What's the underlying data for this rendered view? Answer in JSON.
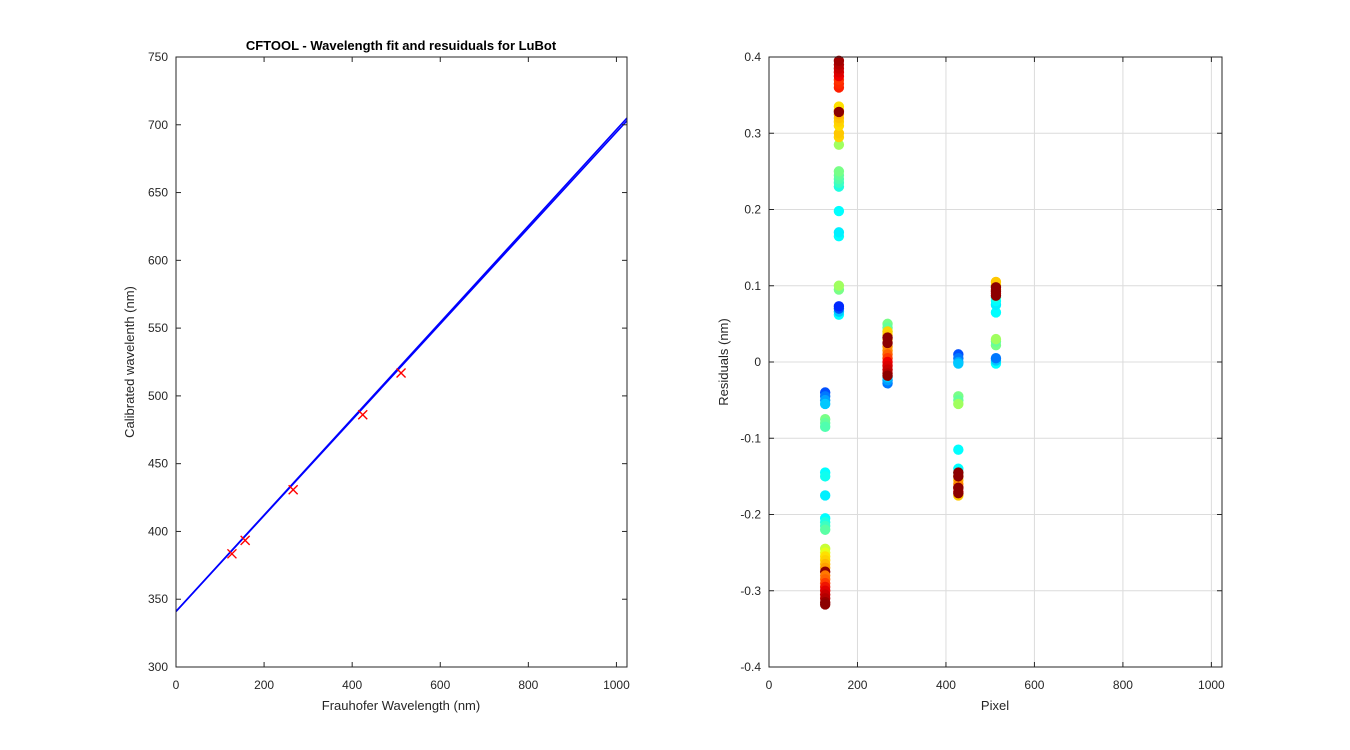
{
  "chart_data": [
    {
      "type": "line",
      "title": "CFTOOL - Wavelength fit and resuiduals for LuBot",
      "xlabel": "Frauhofer Wavelength (nm)",
      "ylabel": "Calibrated wavelenth (nm)",
      "xlim": [
        0,
        1024
      ],
      "ylim": [
        300,
        750
      ],
      "xticks": [
        0,
        200,
        400,
        600,
        800,
        1000
      ],
      "yticks": [
        300,
        350,
        400,
        450,
        500,
        550,
        600,
        650,
        700,
        750
      ],
      "grid": false,
      "series": [
        {
          "kind": "line",
          "color": "#0000ff",
          "x": [
            0,
            1024
          ],
          "y": [
            341,
            703
          ]
        },
        {
          "kind": "line",
          "color": "#0000ff",
          "x": [
            0,
            1024
          ],
          "y": [
            341,
            705
          ]
        },
        {
          "kind": "marker-x",
          "color": "#ff0000",
          "x": [
            127,
            157,
            266,
            424,
            511
          ],
          "y": [
            383.5,
            393.4,
            430.8,
            486.1,
            516.9
          ]
        }
      ]
    },
    {
      "type": "scatter",
      "title": "",
      "xlabel": "Pixel",
      "ylabel": "Residuals  (nm)",
      "xlim": [
        0,
        1024
      ],
      "ylim": [
        -0.4,
        0.4
      ],
      "xticks": [
        0,
        200,
        400,
        600,
        800,
        1000
      ],
      "yticks": [
        -0.4,
        -0.3,
        -0.2,
        -0.1,
        0,
        0.1,
        0.2,
        0.3,
        0.4
      ],
      "ytick_labels": [
        "-0.4",
        "-0.3",
        "-0.2",
        "-0.1",
        "0",
        "0.1",
        "0.2",
        "0.3",
        "0.4"
      ],
      "grid": true,
      "groups": [
        {
          "x": 127,
          "points": [
            [
              -0.04,
              "#0050ff"
            ],
            [
              -0.045,
              "#0078ff"
            ],
            [
              -0.05,
              "#00a0ff"
            ],
            [
              -0.055,
              "#00c8ff"
            ],
            [
              -0.075,
              "#78ff87"
            ],
            [
              -0.08,
              "#64ff9b"
            ],
            [
              -0.085,
              "#50ffaf"
            ],
            [
              -0.145,
              "#00ffff"
            ],
            [
              -0.15,
              "#0fffef"
            ],
            [
              -0.175,
              "#00f0ff"
            ],
            [
              -0.205,
              "#00ffff"
            ],
            [
              -0.21,
              "#1effe1"
            ],
            [
              -0.215,
              "#3cffc3"
            ],
            [
              -0.22,
              "#5affa5"
            ],
            [
              -0.245,
              "#c8ff37"
            ],
            [
              -0.25,
              "#e6ff19"
            ],
            [
              -0.255,
              "#ffe100"
            ],
            [
              -0.26,
              "#ffd200"
            ],
            [
              -0.265,
              "#ffb900"
            ],
            [
              -0.27,
              "#ffa000"
            ],
            [
              -0.275,
              "#8c0000"
            ],
            [
              -0.28,
              "#ff7800"
            ],
            [
              -0.285,
              "#ff6400"
            ],
            [
              -0.29,
              "#ff3c00"
            ],
            [
              -0.295,
              "#f01400"
            ],
            [
              -0.3,
              "#e10000"
            ],
            [
              -0.305,
              "#c80000"
            ],
            [
              -0.31,
              "#b40000"
            ],
            [
              -0.315,
              "#960000"
            ],
            [
              -0.318,
              "#8c0000"
            ]
          ]
        },
        {
          "x": 158,
          "points": [
            [
              0.062,
              "#00ffff"
            ],
            [
              0.066,
              "#00c8ff"
            ],
            [
              0.07,
              "#0050ff"
            ],
            [
              0.073,
              "#0028ff"
            ],
            [
              0.095,
              "#78ff87"
            ],
            [
              0.1,
              "#a0ff5f"
            ],
            [
              0.165,
              "#00ffff"
            ],
            [
              0.17,
              "#00f0ff"
            ],
            [
              0.198,
              "#00ffff"
            ],
            [
              0.23,
              "#1effe1"
            ],
            [
              0.235,
              "#3cffc3"
            ],
            [
              0.24,
              "#50ffaf"
            ],
            [
              0.245,
              "#64ff9b"
            ],
            [
              0.25,
              "#78ff87"
            ],
            [
              0.285,
              "#a0ff5f"
            ],
            [
              0.295,
              "#ffd200"
            ],
            [
              0.3,
              "#ffc800"
            ],
            [
              0.31,
              "#ffdc00"
            ],
            [
              0.315,
              "#ffd200"
            ],
            [
              0.32,
              "#ffc300"
            ],
            [
              0.325,
              "#ffb400"
            ],
            [
              0.33,
              "#ffa500"
            ],
            [
              0.335,
              "#ffe100"
            ],
            [
              0.328,
              "#8c0000"
            ],
            [
              0.36,
              "#ff1e00"
            ],
            [
              0.365,
              "#ff2800"
            ],
            [
              0.37,
              "#ff3200"
            ],
            [
              0.375,
              "#f00000"
            ],
            [
              0.38,
              "#dc0000"
            ],
            [
              0.385,
              "#c80000"
            ],
            [
              0.39,
              "#b40000"
            ],
            [
              0.395,
              "#a00000"
            ]
          ]
        },
        {
          "x": 268,
          "points": [
            [
              -0.028,
              "#0078ff"
            ],
            [
              -0.024,
              "#00a0ff"
            ],
            [
              -0.02,
              "#00c8ff"
            ],
            [
              0.05,
              "#78ff87"
            ],
            [
              0.045,
              "#64ff9b"
            ],
            [
              0.04,
              "#50ffaf"
            ],
            [
              0.04,
              "#ffd200"
            ],
            [
              0.035,
              "#ffc800"
            ],
            [
              0.03,
              "#ffb900"
            ],
            [
              0.02,
              "#ffa000"
            ],
            [
              0.015,
              "#ff8c00"
            ],
            [
              0.01,
              "#ff6400"
            ],
            [
              0.005,
              "#ff3c00"
            ],
            [
              0.0,
              "#f00000"
            ],
            [
              -0.005,
              "#dc0000"
            ],
            [
              -0.01,
              "#c80000"
            ],
            [
              -0.015,
              "#b40000"
            ],
            [
              -0.018,
              "#8c0000"
            ],
            [
              0.025,
              "#8c0000"
            ],
            [
              0.032,
              "#8c0000"
            ]
          ]
        },
        {
          "x": 428,
          "points": [
            [
              0.01,
              "#0050ff"
            ],
            [
              0.005,
              "#0078ff"
            ],
            [
              0.0,
              "#00a0ff"
            ],
            [
              -0.002,
              "#00c8ff"
            ],
            [
              -0.045,
              "#78ff87"
            ],
            [
              -0.05,
              "#64ff9b"
            ],
            [
              -0.055,
              "#a0ff5f"
            ],
            [
              -0.115,
              "#00ffff"
            ],
            [
              -0.14,
              "#00ffff"
            ],
            [
              -0.145,
              "#1effe1"
            ],
            [
              -0.15,
              "#ffd200"
            ],
            [
              -0.155,
              "#ffb900"
            ],
            [
              -0.16,
              "#ff8c00"
            ],
            [
              -0.165,
              "#ff3c00"
            ],
            [
              -0.17,
              "#e10000"
            ],
            [
              -0.175,
              "#ffc800"
            ],
            [
              -0.145,
              "#8c0000"
            ],
            [
              -0.15,
              "#8c0000"
            ],
            [
              -0.165,
              "#8c0000"
            ],
            [
              -0.172,
              "#8c0000"
            ]
          ]
        },
        {
          "x": 513,
          "points": [
            [
              -0.002,
              "#00ffff"
            ],
            [
              0.002,
              "#00c8ff"
            ],
            [
              0.005,
              "#0078ff"
            ],
            [
              0.022,
              "#78ff87"
            ],
            [
              0.027,
              "#64ff9b"
            ],
            [
              0.03,
              "#a0ff5f"
            ],
            [
              0.065,
              "#00ffff"
            ],
            [
              0.075,
              "#00f0ff"
            ],
            [
              0.08,
              "#00ffff"
            ],
            [
              0.085,
              "#1effe1"
            ],
            [
              0.1,
              "#ffd200"
            ],
            [
              0.105,
              "#ffc800"
            ],
            [
              0.095,
              "#ff6400"
            ],
            [
              0.09,
              "#e10000"
            ],
            [
              0.087,
              "#8c0000"
            ],
            [
              0.093,
              "#8c0000"
            ],
            [
              0.098,
              "#8c0000"
            ]
          ]
        }
      ]
    }
  ]
}
